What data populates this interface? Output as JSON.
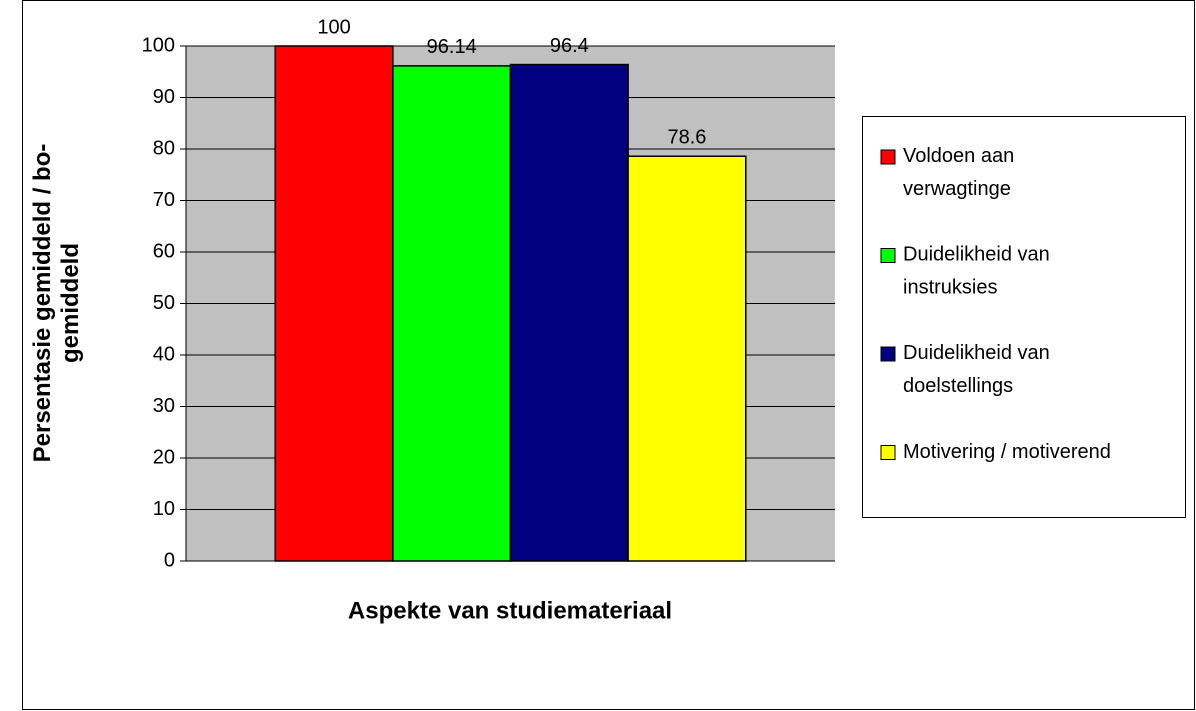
{
  "chart_data": {
    "type": "bar",
    "y_label": [
      "Persentasie gemiddeld / bo-",
      "gemiddeld"
    ],
    "x_label": "Aspekte van studiemateriaal",
    "categories": [
      null
    ],
    "series": [
      {
        "name": "Voldoen aan verwagtinge",
        "color": "#ff0000",
        "values": [
          100
        ]
      },
      {
        "name": "Duidelikheid van instruksies",
        "color": "#00ff00",
        "values": [
          96.14
        ]
      },
      {
        "name": "Duidelikheid van doelstellings",
        "color": "#000080",
        "values": [
          96.4
        ]
      },
      {
        "name": "Motivering / motiverend",
        "color": "#ffff00",
        "values": [
          78.6
        ]
      }
    ],
    "ylim": [
      0,
      100
    ],
    "yticks": [
      0,
      10,
      20,
      30,
      40,
      50,
      60,
      70,
      80,
      90,
      100
    ],
    "grid": true,
    "plot_background": "#c0c0c0",
    "legend": "right"
  }
}
